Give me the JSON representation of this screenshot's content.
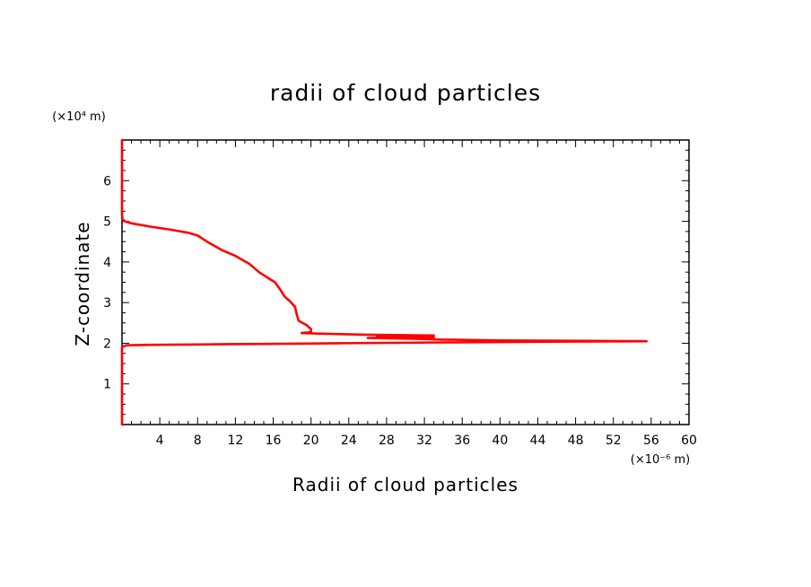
{
  "chart_data": {
    "type": "line",
    "title": "radii of cloud particles",
    "xlabel": "Radii of cloud particles",
    "ylabel": "Z-coordinate",
    "x_unit": "(×10⁻⁶ m)",
    "y_unit": "(×10⁴ m)",
    "xlim": [
      0,
      60
    ],
    "ylim": [
      0,
      7
    ],
    "xticks": [
      4,
      8,
      12,
      16,
      20,
      24,
      28,
      32,
      36,
      40,
      44,
      48,
      52,
      56,
      60
    ],
    "yticks": [
      1,
      2,
      3,
      4,
      5,
      6
    ],
    "grid": false,
    "line_color": "#ff0000",
    "series": [
      {
        "points": [
          [
            0,
            0
          ],
          [
            0,
            1.9
          ],
          [
            0.2,
            1.93
          ],
          [
            0.5,
            1.95
          ],
          [
            3,
            1.96
          ],
          [
            8,
            1.97
          ],
          [
            13,
            1.98
          ],
          [
            18,
            1.99
          ],
          [
            23,
            2.0
          ],
          [
            28,
            2.01
          ],
          [
            34,
            2.02
          ],
          [
            40,
            2.03
          ],
          [
            47,
            2.04
          ],
          [
            55.5,
            2.05
          ],
          [
            47,
            2.06
          ],
          [
            40,
            2.07
          ],
          [
            34,
            2.09
          ],
          [
            31,
            2.11
          ],
          [
            26,
            2.13
          ],
          [
            33,
            2.15
          ],
          [
            27,
            2.17
          ],
          [
            33,
            2.19
          ],
          [
            26,
            2.21
          ],
          [
            22,
            2.23
          ],
          [
            20.5,
            2.24
          ],
          [
            19,
            2.25
          ],
          [
            20,
            2.27
          ],
          [
            20,
            2.35
          ],
          [
            19.5,
            2.45
          ],
          [
            18.7,
            2.55
          ],
          [
            18.5,
            2.7
          ],
          [
            18.3,
            2.9
          ],
          [
            17.7,
            3.05
          ],
          [
            17.2,
            3.15
          ],
          [
            16.8,
            3.3
          ],
          [
            16.2,
            3.5
          ],
          [
            15.5,
            3.6
          ],
          [
            14.5,
            3.75
          ],
          [
            13.5,
            3.95
          ],
          [
            12,
            4.15
          ],
          [
            10.5,
            4.3
          ],
          [
            9,
            4.5
          ],
          [
            8,
            4.65
          ],
          [
            7,
            4.72
          ],
          [
            5,
            4.8
          ],
          [
            3,
            4.87
          ],
          [
            1,
            4.95
          ],
          [
            0.3,
            5.0
          ],
          [
            0.05,
            5.05
          ],
          [
            0,
            5.15
          ],
          [
            0,
            7
          ]
        ]
      }
    ]
  }
}
